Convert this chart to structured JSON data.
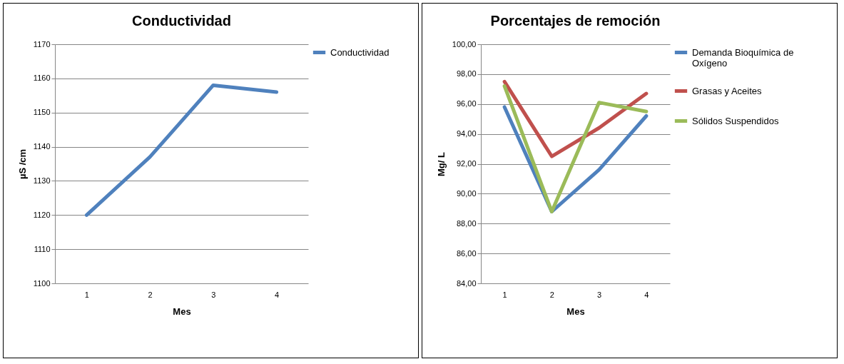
{
  "chart_data": [
    {
      "type": "line",
      "title": "Conductividad",
      "xlabel": "Mes",
      "ylabel": "µS /cm",
      "categories": [
        "1",
        "2",
        "3",
        "4"
      ],
      "series": [
        {
          "name": "Conductividad",
          "color": "#4f81bd",
          "values": [
            1120,
            1137,
            1158,
            1156
          ]
        }
      ],
      "ylim": [
        1100,
        1170
      ],
      "yticks": [
        1100,
        1110,
        1120,
        1130,
        1140,
        1150,
        1160,
        1170
      ],
      "grid": "y",
      "legend": "right"
    },
    {
      "type": "line",
      "title": "Porcentajes de remoción",
      "xlabel": "Mes",
      "ylabel": "Mg/ L",
      "categories": [
        "1",
        "2",
        "3",
        "4"
      ],
      "series": [
        {
          "name": "Demanda Bioquímica de Oxígeno",
          "color": "#4f81bd",
          "values": [
            95.8,
            88.8,
            91.6,
            95.2
          ]
        },
        {
          "name": "Grasas y Aceites",
          "color": "#c0504d",
          "values": [
            97.5,
            92.5,
            94.4,
            96.7
          ]
        },
        {
          "name": "Sólidos Suspendidos",
          "color": "#9bbb59",
          "values": [
            97.2,
            88.8,
            96.1,
            95.5
          ]
        }
      ],
      "ylim": [
        84,
        100
      ],
      "yticks": [
        {
          "value": 84,
          "label": "84,00"
        },
        {
          "value": 86,
          "label": "86,00"
        },
        {
          "value": 88,
          "label": "88,00"
        },
        {
          "value": 90,
          "label": "90,00"
        },
        {
          "value": 92,
          "label": "92,00"
        },
        {
          "value": 94,
          "label": "94,00"
        },
        {
          "value": 96,
          "label": "96,00"
        },
        {
          "value": 98,
          "label": "98,00"
        },
        {
          "value": 100,
          "label": "100,00"
        }
      ],
      "grid": "y",
      "legend": "right"
    }
  ]
}
